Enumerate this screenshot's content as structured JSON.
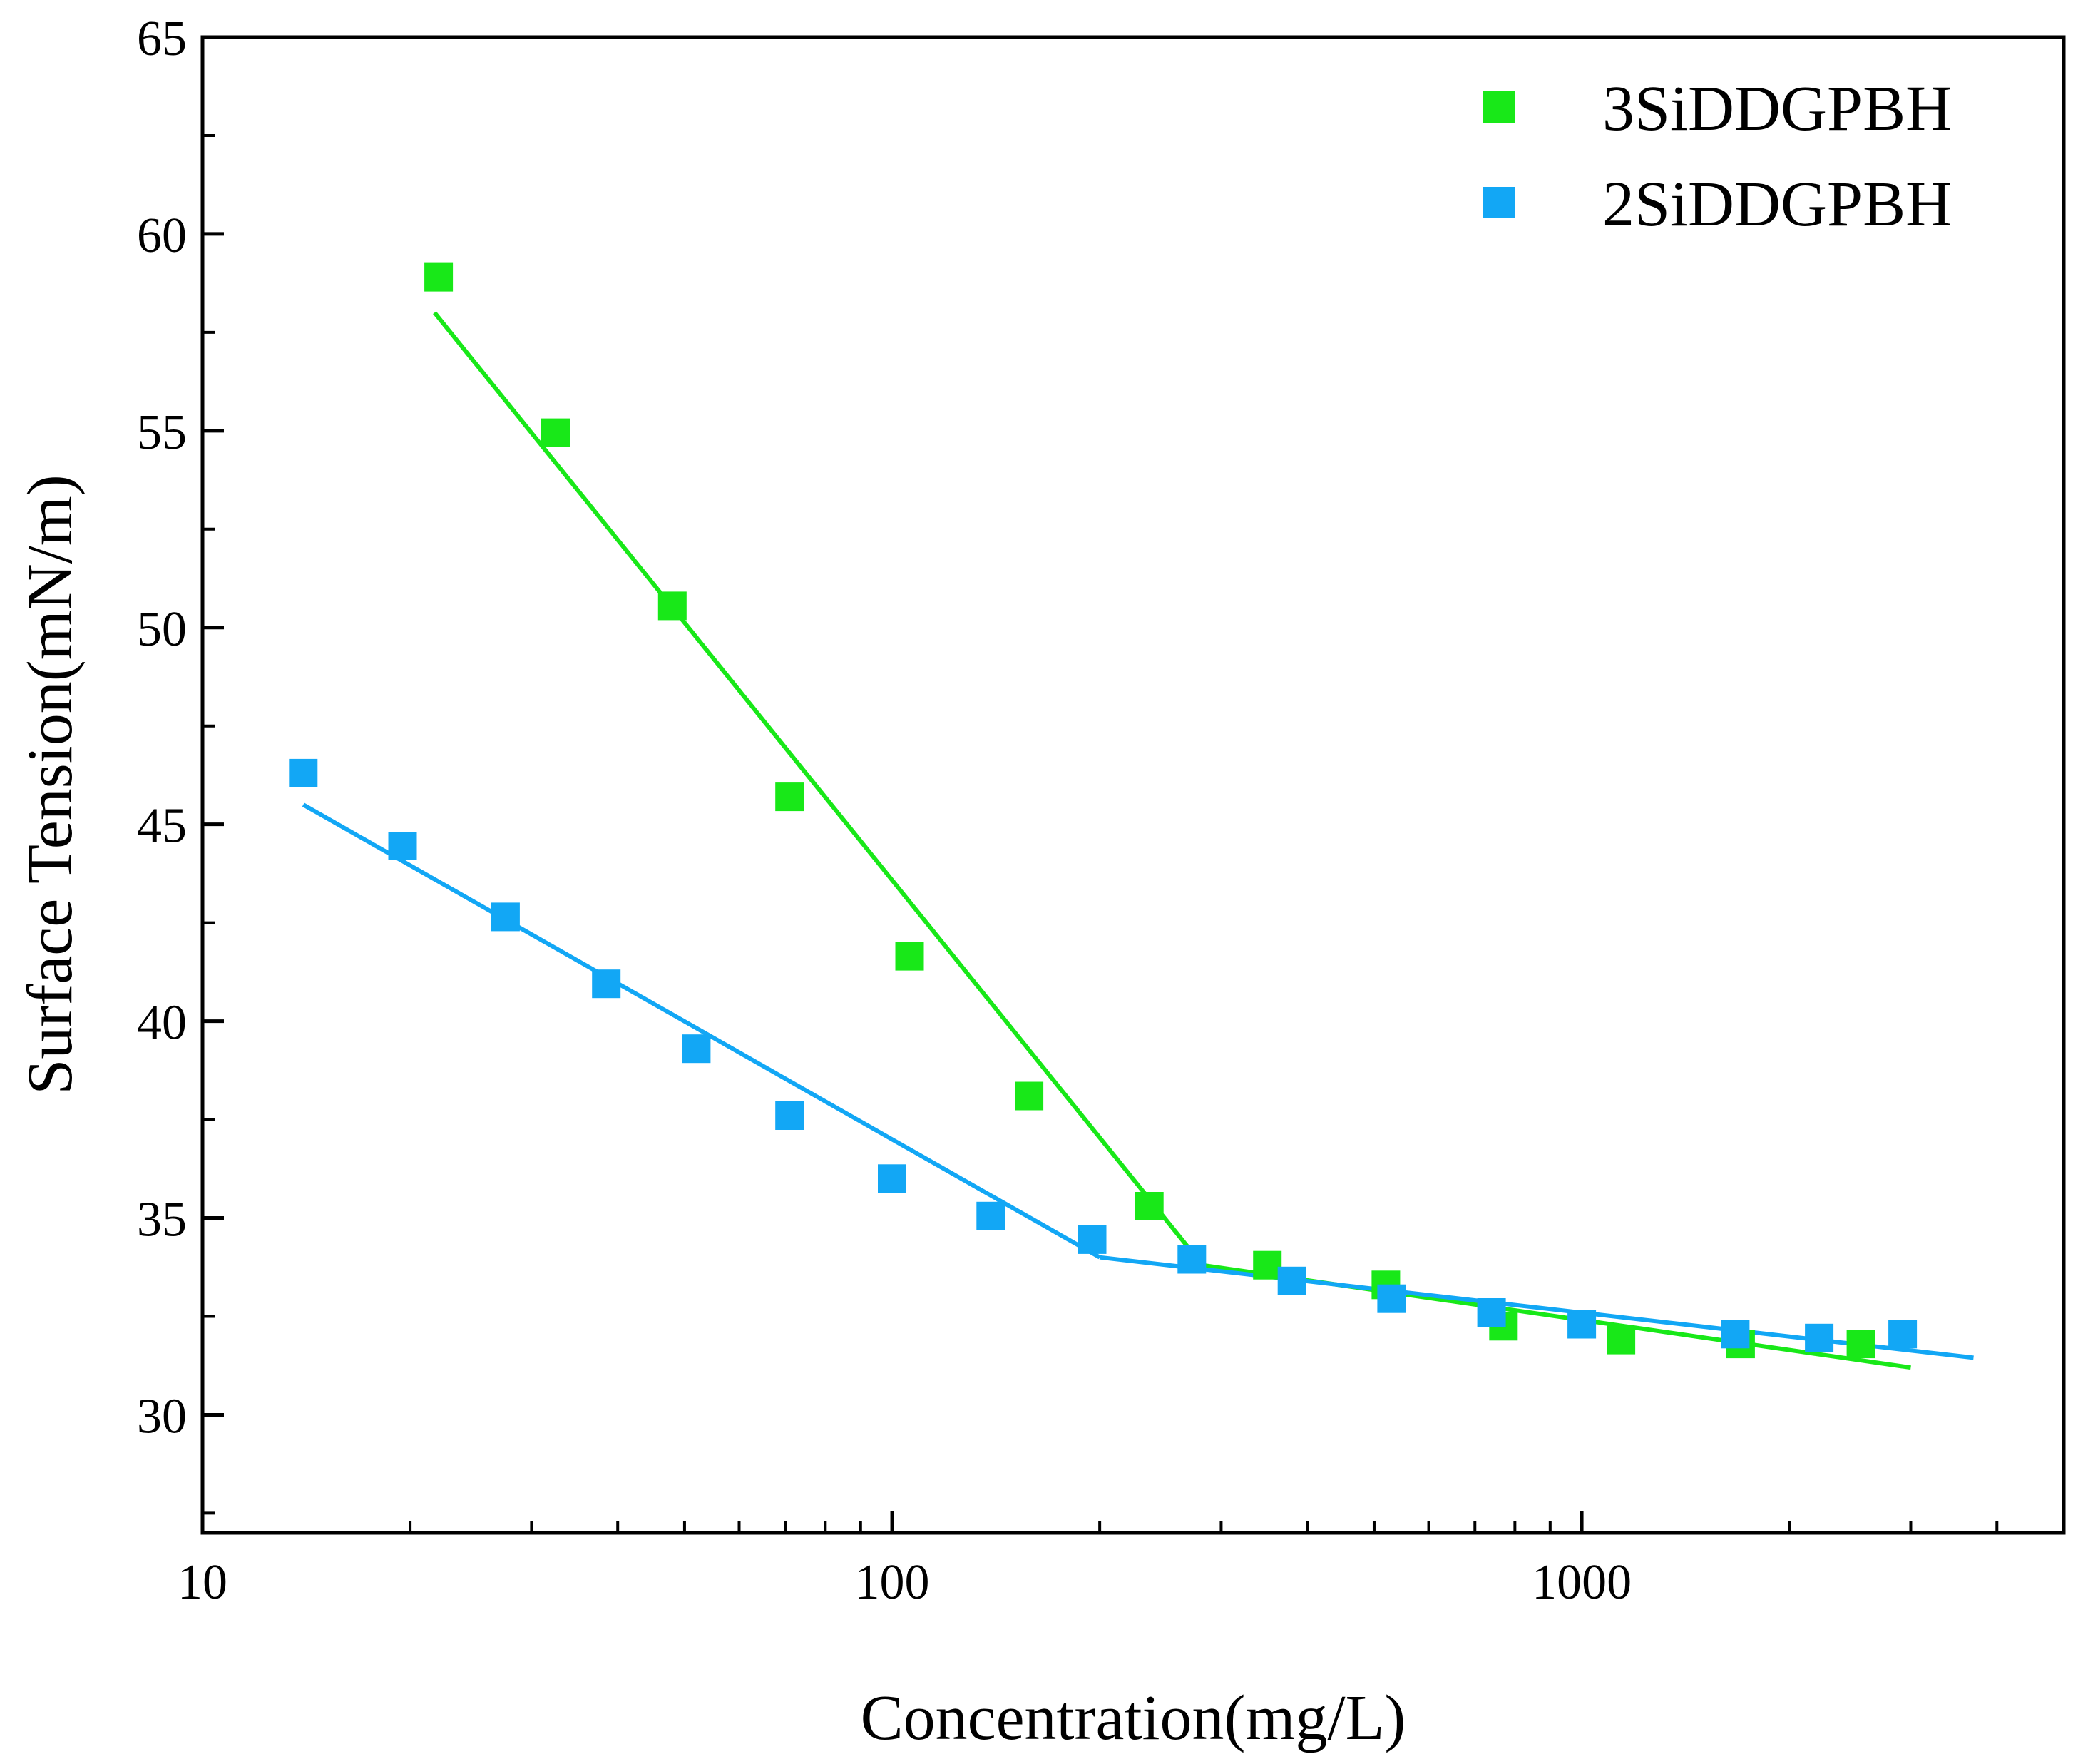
{
  "chart_data": {
    "type": "scatter",
    "title": "",
    "xlabel": "Concentration(mg/L)",
    "ylabel": "Surface Tension(mN/m)",
    "xscale": "log",
    "xlim": [
      10,
      5000
    ],
    "ylim": [
      27,
      65
    ],
    "x_ticks": [
      10,
      100,
      1000
    ],
    "x_tick_labels": [
      "10",
      "100",
      "1000"
    ],
    "y_ticks": [
      30,
      35,
      40,
      45,
      50,
      55,
      60,
      65
    ],
    "y_tick_labels": [
      "30",
      "35",
      "40",
      "45",
      "50",
      "55",
      "60",
      "65"
    ],
    "grid": false,
    "legend_position": "top-right",
    "series": [
      {
        "name": "3SiDDGPBH",
        "color": "#18e818",
        "marker": "square",
        "points": [
          {
            "x": 22,
            "y": 58.9
          },
          {
            "x": 32.5,
            "y": 54.95
          },
          {
            "x": 48,
            "y": 50.55
          },
          {
            "x": 71,
            "y": 45.7
          },
          {
            "x": 106,
            "y": 41.65
          },
          {
            "x": 158,
            "y": 38.1
          },
          {
            "x": 236,
            "y": 35.3
          },
          {
            "x": 350,
            "y": 33.8
          },
          {
            "x": 520,
            "y": 33.3
          },
          {
            "x": 770,
            "y": 32.25
          },
          {
            "x": 1140,
            "y": 31.9
          },
          {
            "x": 1700,
            "y": 31.8
          },
          {
            "x": 2540,
            "y": 31.8
          }
        ],
        "fit_lines": [
          {
            "x": [
              21.7,
              282
            ],
            "y": [
              58.0,
              33.8
            ]
          },
          {
            "x": [
              282,
              3000
            ],
            "y": [
              33.8,
              31.2
            ]
          }
        ]
      },
      {
        "name": "2SiDDGPBH",
        "color": "#12a7f5",
        "marker": "square",
        "points": [
          {
            "x": 14,
            "y": 46.3
          },
          {
            "x": 19.5,
            "y": 44.45
          },
          {
            "x": 27.5,
            "y": 42.65
          },
          {
            "x": 38.5,
            "y": 40.95
          },
          {
            "x": 52,
            "y": 39.3
          },
          {
            "x": 71,
            "y": 37.6
          },
          {
            "x": 100,
            "y": 36.0
          },
          {
            "x": 139,
            "y": 35.05
          },
          {
            "x": 195,
            "y": 34.45
          },
          {
            "x": 272,
            "y": 33.95
          },
          {
            "x": 380,
            "y": 33.4
          },
          {
            "x": 530,
            "y": 32.95
          },
          {
            "x": 740,
            "y": 32.6
          },
          {
            "x": 1000,
            "y": 32.3
          },
          {
            "x": 1670,
            "y": 32.05
          },
          {
            "x": 2210,
            "y": 31.95
          },
          {
            "x": 2920,
            "y": 32.05
          }
        ],
        "fit_lines": [
          {
            "x": [
              14,
              200
            ],
            "y": [
              45.5,
              34.0
            ]
          },
          {
            "x": [
              200,
              3700
            ],
            "y": [
              34.0,
              31.45
            ]
          }
        ]
      }
    ]
  }
}
